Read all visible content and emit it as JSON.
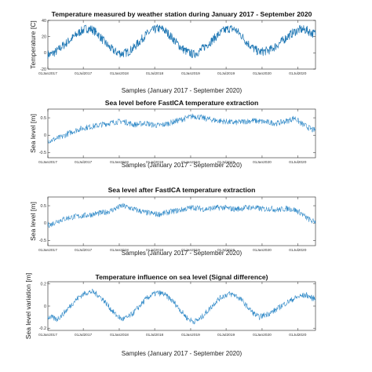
{
  "chart_data": [
    {
      "type": "line",
      "title": "Temperature measured by weather station during January 2017 - September 2020",
      "xlabel": "Samples (January 2017 - September 2020)",
      "ylabel": "Temperature [C]",
      "ylim": [
        -20,
        40
      ],
      "yticks": [
        "-20",
        "0",
        "20",
        "40"
      ],
      "xticks": [
        "01Jan2017",
        "01Jul2017",
        "01Jan2018",
        "01Jul2018",
        "01Jan2019",
        "01Jul2019",
        "01Jan2020",
        "01Jul2020"
      ],
      "color": "#1f77b4",
      "series": [
        {
          "x": [
            "2017-01",
            "2017-02",
            "2017-03",
            "2017-04",
            "2017-05",
            "2017-06",
            "2017-07",
            "2017-08",
            "2017-09",
            "2017-10",
            "2017-11",
            "2017-12",
            "2018-01",
            "2018-02",
            "2018-03",
            "2018-04",
            "2018-05",
            "2018-06",
            "2018-07",
            "2018-08",
            "2018-09",
            "2018-10",
            "2018-11",
            "2018-12",
            "2019-01",
            "2019-02",
            "2019-03",
            "2019-04",
            "2019-05",
            "2019-06",
            "2019-07",
            "2019-08",
            "2019-09",
            "2019-10",
            "2019-11",
            "2019-12",
            "2020-01",
            "2020-02",
            "2020-03",
            "2020-04",
            "2020-05",
            "2020-06",
            "2020-07",
            "2020-08",
            "2020-09"
          ],
          "values": [
            -2,
            2,
            8,
            14,
            20,
            26,
            30,
            29,
            23,
            14,
            6,
            1,
            -1,
            1,
            6,
            14,
            22,
            27,
            30,
            29,
            22,
            14,
            6,
            1,
            -2,
            2,
            8,
            14,
            21,
            27,
            30,
            29,
            22,
            13,
            6,
            1,
            2,
            4,
            9,
            15,
            21,
            26,
            29,
            28,
            24
          ]
        }
      ]
    },
    {
      "type": "line",
      "title": "Sea level before FastICA temperature extraction",
      "xlabel": "Samples (January 2017 - September 2020)",
      "ylabel": "Sea level [m]",
      "ylim": [
        -0.65,
        0.75
      ],
      "yticks": [
        "-0.5",
        "0",
        "0.5"
      ],
      "xticks": [
        "01Jan2017",
        "01Jul2017",
        "01Jan2018",
        "01Jul2018",
        "01Jan2019",
        "01Jul2019",
        "01Jan2020",
        "01Jul2020"
      ],
      "color": "#2a86c6",
      "series": [
        {
          "x": [
            "2017-01",
            "2017-02",
            "2017-03",
            "2017-04",
            "2017-05",
            "2017-06",
            "2017-07",
            "2017-08",
            "2017-09",
            "2017-10",
            "2017-11",
            "2017-12",
            "2018-01",
            "2018-02",
            "2018-03",
            "2018-04",
            "2018-05",
            "2018-06",
            "2018-07",
            "2018-08",
            "2018-09",
            "2018-10",
            "2018-11",
            "2018-12",
            "2019-01",
            "2019-02",
            "2019-03",
            "2019-04",
            "2019-05",
            "2019-06",
            "2019-07",
            "2019-08",
            "2019-09",
            "2019-10",
            "2019-11",
            "2019-12",
            "2020-01",
            "2020-02",
            "2020-03",
            "2020-04",
            "2020-05",
            "2020-06",
            "2020-07",
            "2020-08",
            "2020-09"
          ],
          "values": [
            -0.15,
            -0.1,
            -0.05,
            0.05,
            0.12,
            0.18,
            0.22,
            0.25,
            0.28,
            0.32,
            0.35,
            0.38,
            0.4,
            0.36,
            0.3,
            0.32,
            0.35,
            0.3,
            0.28,
            0.3,
            0.35,
            0.4,
            0.45,
            0.5,
            0.55,
            0.52,
            0.48,
            0.45,
            0.42,
            0.4,
            0.38,
            0.36,
            0.38,
            0.4,
            0.42,
            0.4,
            0.38,
            0.36,
            0.34,
            0.38,
            0.42,
            0.5,
            0.35,
            0.25,
            0.15
          ]
        }
      ]
    },
    {
      "type": "line",
      "title": "Sea level after FastICA temperature extraction",
      "xlabel": "Samples (January 2017 - September 2020)",
      "ylabel": "Sea level [m]",
      "ylim": [
        -0.65,
        0.75
      ],
      "yticks": [
        "-0.5",
        "0",
        "0.5"
      ],
      "xticks": [
        "01Jan2017",
        "01Jul2017",
        "01Jan2018",
        "01Jul2018",
        "01Jan2019",
        "01Jul2019",
        "01Jan2020",
        "01Jul2020"
      ],
      "color": "#2a86c6",
      "series": [
        {
          "x": [
            "2017-01",
            "2017-02",
            "2017-03",
            "2017-04",
            "2017-05",
            "2017-06",
            "2017-07",
            "2017-08",
            "2017-09",
            "2017-10",
            "2017-11",
            "2017-12",
            "2018-01",
            "2018-02",
            "2018-03",
            "2018-04",
            "2018-05",
            "2018-06",
            "2018-07",
            "2018-08",
            "2018-09",
            "2018-10",
            "2018-11",
            "2018-12",
            "2019-01",
            "2019-02",
            "2019-03",
            "2019-04",
            "2019-05",
            "2019-06",
            "2019-07",
            "2019-08",
            "2019-09",
            "2019-10",
            "2019-11",
            "2019-12",
            "2020-01",
            "2020-02",
            "2020-03",
            "2020-04",
            "2020-05",
            "2020-06",
            "2020-07",
            "2020-08",
            "2020-09"
          ],
          "values": [
            -0.05,
            0.05,
            0.1,
            0.15,
            0.18,
            0.2,
            0.22,
            0.25,
            0.28,
            0.3,
            0.35,
            0.42,
            0.5,
            0.45,
            0.4,
            0.35,
            0.3,
            0.28,
            0.25,
            0.28,
            0.32,
            0.35,
            0.38,
            0.42,
            0.45,
            0.42,
            0.4,
            0.42,
            0.44,
            0.45,
            0.42,
            0.4,
            0.42,
            0.45,
            0.45,
            0.42,
            0.4,
            0.42,
            0.38,
            0.4,
            0.42,
            0.38,
            0.3,
            0.15,
            0.05
          ]
        }
      ]
    },
    {
      "type": "line",
      "title": "Temperature influence on sea level (Signal difference)",
      "xlabel": "Samples (January 2017 - September 2020)",
      "ylabel": "Sea level variation [m]",
      "ylim": [
        -0.22,
        0.22
      ],
      "yticks": [
        "-0.2",
        "0",
        "0.2"
      ],
      "xticks": [
        "01Jan2017",
        "01Jul2017",
        "01Jan2018",
        "01Jul2018",
        "01Jan2019",
        "01Jul2019",
        "01Jan2020",
        "01Jul2020"
      ],
      "color": "#2a86c6",
      "series": [
        {
          "x": [
            "2017-01",
            "2017-02",
            "2017-03",
            "2017-04",
            "2017-05",
            "2017-06",
            "2017-07",
            "2017-08",
            "2017-09",
            "2017-10",
            "2017-11",
            "2017-12",
            "2018-01",
            "2018-02",
            "2018-03",
            "2018-04",
            "2018-05",
            "2018-06",
            "2018-07",
            "2018-08",
            "2018-09",
            "2018-10",
            "2018-11",
            "2018-12",
            "2019-01",
            "2019-02",
            "2019-03",
            "2019-04",
            "2019-05",
            "2019-06",
            "2019-07",
            "2019-08",
            "2019-09",
            "2019-10",
            "2019-11",
            "2019-12",
            "2020-01",
            "2020-02",
            "2020-03",
            "2020-04",
            "2020-05",
            "2020-06",
            "2020-07",
            "2020-08",
            "2020-09"
          ],
          "values": [
            -0.1,
            -0.12,
            -0.08,
            -0.02,
            0.04,
            0.09,
            0.12,
            0.13,
            0.1,
            0.05,
            -0.02,
            -0.08,
            -0.12,
            -0.1,
            -0.06,
            0.0,
            0.06,
            0.1,
            0.12,
            0.11,
            0.07,
            0.02,
            -0.05,
            -0.11,
            -0.14,
            -0.12,
            -0.07,
            -0.01,
            0.05,
            0.09,
            0.11,
            0.1,
            0.06,
            0.0,
            -0.06,
            -0.1,
            -0.08,
            -0.06,
            -0.03,
            0.01,
            0.04,
            0.07,
            0.09,
            0.1,
            0.07
          ]
        }
      ]
    }
  ]
}
